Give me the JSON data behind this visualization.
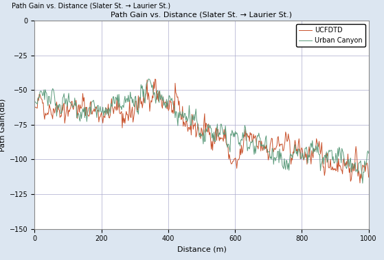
{
  "title": "Path Gain vs. Distance (Slater St. → Laurier St.)",
  "xlabel": "Distance (m)",
  "ylabel": "Path Gain(dB)",
  "xlim": [
    0,
    1000
  ],
  "ylim": [
    -150,
    0
  ],
  "yticks": [
    0,
    -25,
    -50,
    -75,
    -100,
    -125,
    -150
  ],
  "xticks": [
    0,
    200,
    400,
    600,
    800,
    1000
  ],
  "legend_labels": [
    "UCFDTD",
    "Urban Canyon"
  ],
  "ucfdtd_color": "#c8502a",
  "urban_canyon_color": "#5a9a7a",
  "background_color": "#dce6f1",
  "plot_bg_color": "#ffffff",
  "grid_color": "#aaaacc",
  "title_fontsize": 8,
  "axis_fontsize": 8,
  "tick_fontsize": 7,
  "legend_fontsize": 7,
  "seed": 42
}
